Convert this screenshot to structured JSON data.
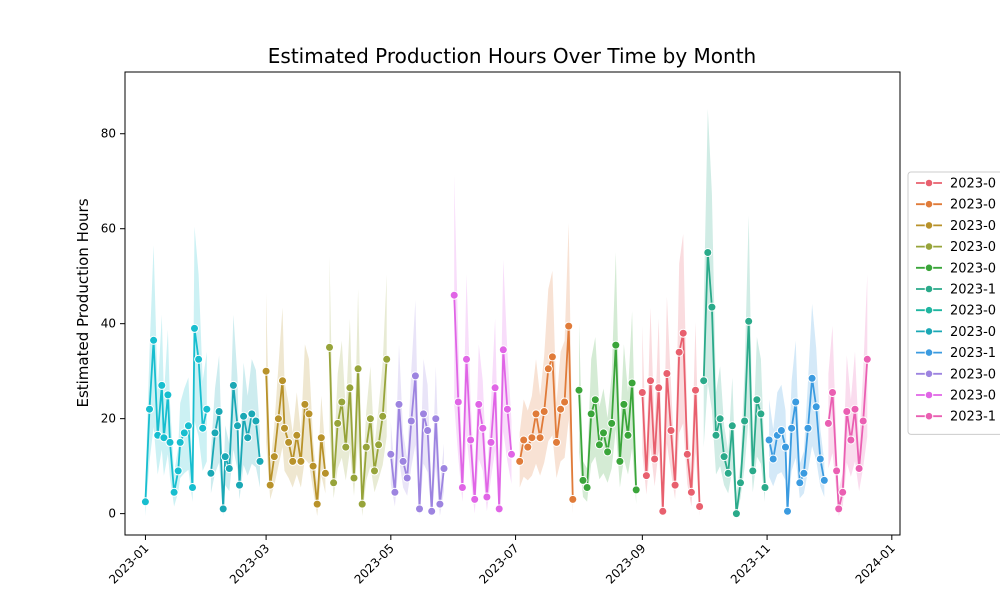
{
  "chart_data": {
    "type": "line",
    "title": "Estimated Production Hours Over Time by Month",
    "xlabel": "",
    "ylabel": "Estimated Production Hours",
    "x_range": [
      "2022-12-22",
      "2024-01-05"
    ],
    "ylim": [
      -4.5,
      93
    ],
    "x_ticks": [
      "2023-01",
      "2023-03",
      "2023-05",
      "2023-07",
      "2023-09",
      "2023-11",
      "2024-01"
    ],
    "x_tick_dates": [
      "2023-01-01",
      "2023-03-01",
      "2023-05-01",
      "2023-07-01",
      "2023-09-01",
      "2023-11-01",
      "2024-01-01"
    ],
    "y_ticks": [
      0,
      20,
      40,
      60,
      80
    ],
    "grid": false,
    "legend_position": "right (outside plot, clipped)",
    "series": [
      {
        "name": "2023-0",
        "color": "#17becf",
        "x": [
          "2023-01-01",
          "2023-01-03",
          "2023-01-05",
          "2023-01-07",
          "2023-01-09",
          "2023-01-10",
          "2023-01-12",
          "2023-01-13",
          "2023-01-15",
          "2023-01-17",
          "2023-01-18",
          "2023-01-20",
          "2023-01-22",
          "2023-01-24",
          "2023-01-25",
          "2023-01-27",
          "2023-01-29",
          "2023-01-31"
        ],
        "y": [
          2.5,
          22,
          36.5,
          16.5,
          27,
          16,
          25,
          15,
          4.5,
          9,
          15,
          17,
          18.5,
          5.5,
          39,
          32.5,
          18,
          22
        ]
      },
      {
        "name": "2023-0",
        "color": "#1aa8b5",
        "x": [
          "2023-02-02",
          "2023-02-04",
          "2023-02-06",
          "2023-02-08",
          "2023-02-09",
          "2023-02-11",
          "2023-02-13",
          "2023-02-15",
          "2023-02-16",
          "2023-02-18",
          "2023-02-20",
          "2023-02-22",
          "2023-02-24",
          "2023-02-26"
        ],
        "y": [
          8.5,
          17,
          21.5,
          1,
          12,
          9.5,
          27,
          18.5,
          6,
          20.5,
          16,
          21,
          19.5,
          11
        ]
      },
      {
        "name": "2023-0",
        "color": "#b8922a",
        "x": [
          "2023-03-01",
          "2023-03-03",
          "2023-03-05",
          "2023-03-07",
          "2023-03-09",
          "2023-03-10",
          "2023-03-12",
          "2023-03-14",
          "2023-03-16",
          "2023-03-18",
          "2023-03-20",
          "2023-03-22",
          "2023-03-24",
          "2023-03-26",
          "2023-03-28",
          "2023-03-30"
        ],
        "y": [
          30,
          6,
          12,
          20,
          28,
          18,
          15,
          11,
          16.5,
          11,
          23,
          21,
          10,
          2,
          16,
          8.5
        ]
      },
      {
        "name": "2023-0",
        "color": "#97a43a",
        "x": [
          "2023-04-01",
          "2023-04-03",
          "2023-04-05",
          "2023-04-07",
          "2023-04-09",
          "2023-04-11",
          "2023-04-13",
          "2023-04-15",
          "2023-04-17",
          "2023-04-19",
          "2023-04-21",
          "2023-04-23",
          "2023-04-25",
          "2023-04-27",
          "2023-04-29"
        ],
        "y": [
          35,
          6.5,
          19,
          23.5,
          14,
          26.5,
          7.5,
          30.5,
          2,
          14,
          20,
          9,
          14.5,
          20.5,
          32.5
        ]
      },
      {
        "name": "2023-0",
        "color": "#9d84e0",
        "x": [
          "2023-05-01",
          "2023-05-03",
          "2023-05-05",
          "2023-05-07",
          "2023-05-09",
          "2023-05-11",
          "2023-05-13",
          "2023-05-15",
          "2023-05-17",
          "2023-05-19",
          "2023-05-21",
          "2023-05-23",
          "2023-05-25",
          "2023-05-27"
        ],
        "y": [
          12.5,
          4.5,
          23,
          11,
          7.5,
          19.5,
          29,
          1,
          21,
          17.5,
          0.5,
          20,
          2,
          9.5
        ]
      },
      {
        "name": "2023-0",
        "color": "#e065e6",
        "x": [
          "2023-06-01",
          "2023-06-03",
          "2023-06-05",
          "2023-06-07",
          "2023-06-09",
          "2023-06-11",
          "2023-06-13",
          "2023-06-15",
          "2023-06-17",
          "2023-06-19",
          "2023-06-21",
          "2023-06-23",
          "2023-06-25",
          "2023-06-27",
          "2023-06-29"
        ],
        "y": [
          46,
          23.5,
          5.5,
          32.5,
          15.5,
          3,
          23,
          18,
          3.5,
          15,
          26.5,
          1,
          34.5,
          22,
          12.5
        ]
      },
      {
        "name": "2023-0",
        "color": "#e07b39",
        "x": [
          "2023-07-03",
          "2023-07-05",
          "2023-07-07",
          "2023-07-09",
          "2023-07-11",
          "2023-07-13",
          "2023-07-15",
          "2023-07-17",
          "2023-07-19",
          "2023-07-21",
          "2023-07-23",
          "2023-07-25",
          "2023-07-27",
          "2023-07-29"
        ],
        "y": [
          11,
          15.5,
          14,
          16,
          21,
          16,
          21.5,
          30.5,
          33,
          15,
          22,
          23.5,
          39.5,
          3
        ]
      },
      {
        "name": "2023-0",
        "color": "#3aa53a",
        "x": [
          "2023-08-01",
          "2023-08-03",
          "2023-08-05",
          "2023-08-07",
          "2023-08-09",
          "2023-08-11",
          "2023-08-13",
          "2023-08-15",
          "2023-08-17",
          "2023-08-19",
          "2023-08-21",
          "2023-08-23",
          "2023-08-25",
          "2023-08-27",
          "2023-08-29"
        ],
        "y": [
          26,
          7,
          5.5,
          21,
          24,
          14.5,
          17,
          13,
          19,
          35.5,
          11,
          23,
          16.5,
          27.5,
          5
        ]
      },
      {
        "name": "2023-0",
        "color": "#e8606e",
        "x": [
          "2023-09-01",
          "2023-09-03",
          "2023-09-05",
          "2023-09-07",
          "2023-09-09",
          "2023-09-11",
          "2023-09-13",
          "2023-09-15",
          "2023-09-17",
          "2023-09-19",
          "2023-09-21",
          "2023-09-23",
          "2023-09-25",
          "2023-09-27",
          "2023-09-29"
        ],
        "y": [
          25.5,
          8,
          28,
          11.5,
          26.5,
          0.5,
          29.5,
          17.5,
          6,
          34,
          38,
          12.5,
          4.5,
          26,
          1.5
        ]
      },
      {
        "name": "2023-1",
        "color": "#2aaa8a",
        "x": [
          "2023-10-01",
          "2023-10-03",
          "2023-10-05",
          "2023-10-07",
          "2023-10-09",
          "2023-10-11",
          "2023-10-13",
          "2023-10-15",
          "2023-10-17",
          "2023-10-19",
          "2023-10-21",
          "2023-10-23",
          "2023-10-25",
          "2023-10-27",
          "2023-10-29",
          "2023-10-31"
        ],
        "y": [
          28,
          55,
          43.5,
          16.5,
          20,
          12,
          8.5,
          18.5,
          0,
          6.5,
          19.5,
          40.5,
          9,
          24,
          21,
          5.5
        ]
      },
      {
        "name": "2023-1",
        "color": "#3b9be0",
        "x": [
          "2023-11-02",
          "2023-11-04",
          "2023-11-06",
          "2023-11-08",
          "2023-11-10",
          "2023-11-11",
          "2023-11-13",
          "2023-11-15",
          "2023-11-17",
          "2023-11-19",
          "2023-11-21",
          "2023-11-23",
          "2023-11-25",
          "2023-11-27",
          "2023-11-29"
        ],
        "y": [
          15.5,
          11.5,
          16.5,
          17.5,
          14,
          0.5,
          18,
          23.5,
          6.5,
          8.5,
          18,
          28.5,
          22.5,
          11.5,
          7
        ]
      },
      {
        "name": "2023-1",
        "color": "#ea5fb2",
        "x": [
          "2023-12-01",
          "2023-12-03",
          "2023-12-05",
          "2023-12-06",
          "2023-12-08",
          "2023-12-10",
          "2023-12-12",
          "2023-12-14",
          "2023-12-16",
          "2023-12-18",
          "2023-12-20"
        ],
        "y": [
          19,
          25.5,
          9,
          1,
          4.5,
          21.5,
          15.5,
          22,
          9.5,
          19.5,
          32.5
        ]
      }
    ]
  },
  "legend": {
    "entries": [
      {
        "label": "2023-0",
        "color": "#e8606e"
      },
      {
        "label": "2023-0",
        "color": "#e07b39"
      },
      {
        "label": "2023-0",
        "color": "#b8922a"
      },
      {
        "label": "2023-0",
        "color": "#97a43a"
      },
      {
        "label": "2023-0",
        "color": "#3aa53a"
      },
      {
        "label": "2023-1",
        "color": "#2aaa8a"
      },
      {
        "label": "2023-0",
        "color": "#1fb5a0"
      },
      {
        "label": "2023-0",
        "color": "#1aa8b5"
      },
      {
        "label": "2023-1",
        "color": "#3b9be0"
      },
      {
        "label": "2023-0",
        "color": "#9d84e0"
      },
      {
        "label": "2023-0",
        "color": "#e065e6"
      },
      {
        "label": "2023-1",
        "color": "#ea5fb2"
      }
    ]
  }
}
